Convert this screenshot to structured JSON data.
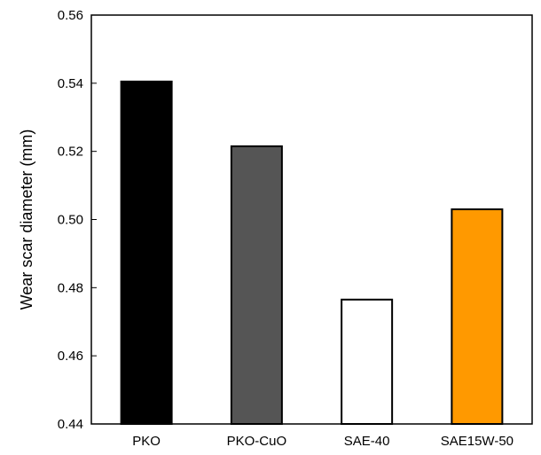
{
  "chart_data": {
    "type": "bar",
    "categories": [
      "PKO",
      "PKO-CuO",
      "SAE-40",
      "SAE15W-50"
    ],
    "values": [
      0.5405,
      0.5215,
      0.4765,
      0.503
    ],
    "bar_colors": [
      "#000000",
      "#555555",
      "#ffffff",
      "#ff9900"
    ],
    "bar_edge_color": "#000000",
    "title": "",
    "xlabel": "",
    "ylabel": "Wear scar diameter (mm)",
    "ylim": [
      0.44,
      0.56
    ],
    "yticks": [
      "0.44",
      "0.46",
      "0.48",
      "0.50",
      "0.52",
      "0.54",
      "0.56"
    ],
    "grid": false,
    "legend": "none"
  }
}
